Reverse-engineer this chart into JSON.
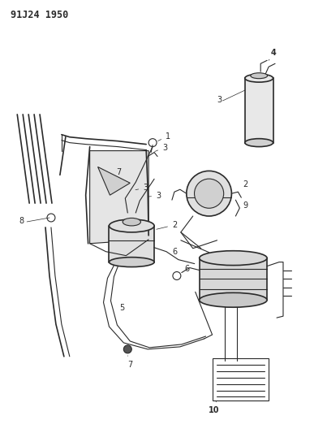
{
  "title": "91J24 1950",
  "bg_color": "#f0f0f0",
  "line_color": "#2a2a2a",
  "fill_light": "#d8d8d8",
  "fill_mid": "#c0c0c0",
  "title_fontsize": 8.5,
  "label_fontsize": 7,
  "figsize": [
    4.03,
    5.33
  ],
  "dpi": 100
}
